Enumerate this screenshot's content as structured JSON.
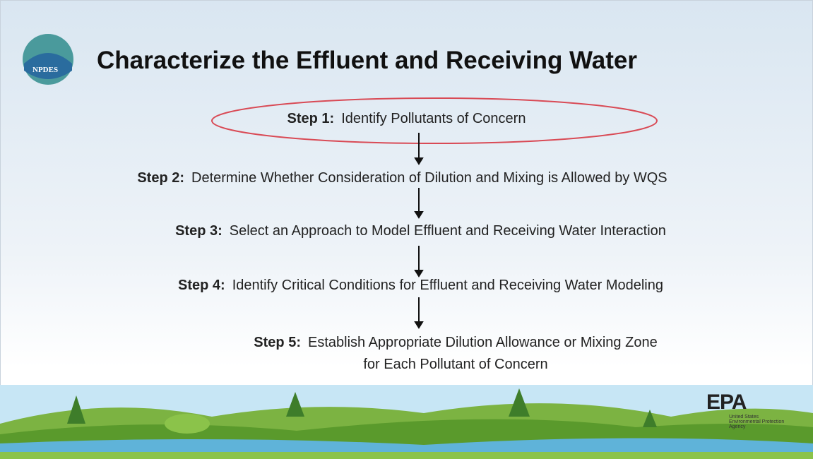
{
  "header": {
    "title": "Characterize the Effluent and Receiving Water",
    "logo": "NPDES"
  },
  "steps": [
    {
      "label": "Step 1:",
      "text": "Identify Pollutants of Concern"
    },
    {
      "label": "Step 2:",
      "text": "Determine Whether Consideration of Dilution and Mixing is Allowed by WQS"
    },
    {
      "label": "Step 3:",
      "text": "Select an Approach to Model Effluent and Receiving Water Interaction"
    },
    {
      "label": "Step 4:",
      "text": "Identify Critical Conditions for Effluent and Receiving Water Modeling"
    },
    {
      "label": "Step 5:",
      "text": "Establish Appropriate Dilution Allowance or Mixing Zone for Each Pollutant of Concern"
    }
  ],
  "footer": {
    "agency": "EPA",
    "agency_lines": [
      "United States",
      "Environmental Protection",
      "Agency"
    ]
  }
}
